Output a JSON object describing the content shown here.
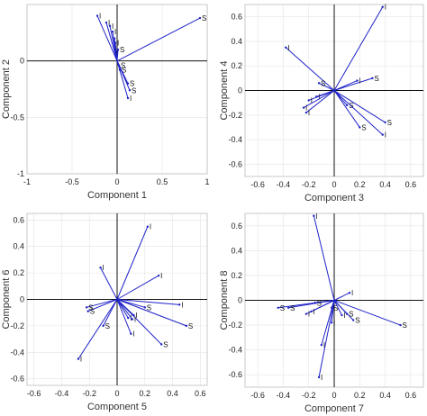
{
  "chart_data": [
    {
      "type": "biplot",
      "xlabel": "Component 1",
      "ylabel": "Component 2",
      "xlim": [
        -1,
        1
      ],
      "ylim": [
        -1,
        0.5
      ],
      "xticks": [
        "-1",
        "-0.5",
        "0",
        "0.5",
        "1"
      ],
      "yticks": [
        "-1",
        "-0.5",
        "0"
      ],
      "grid": true,
      "vectors": [
        {
          "label": "S",
          "x": 0.92,
          "y": 0.38
        },
        {
          "label": "I",
          "x": -0.22,
          "y": 0.4
        },
        {
          "label": "I",
          "x": -0.12,
          "y": 0.34
        },
        {
          "label": "I",
          "x": -0.08,
          "y": 0.31
        },
        {
          "label": "I",
          "x": -0.05,
          "y": 0.26
        },
        {
          "label": "I",
          "x": -0.03,
          "y": 0.2
        },
        {
          "label": "I",
          "x": -0.02,
          "y": 0.16
        },
        {
          "label": "S",
          "x": 0.01,
          "y": 0.1
        },
        {
          "label": "S",
          "x": 0.02,
          "y": -0.04
        },
        {
          "label": "S",
          "x": 0.03,
          "y": -0.08
        },
        {
          "label": "S",
          "x": 0.12,
          "y": -0.2
        },
        {
          "label": "S",
          "x": 0.14,
          "y": -0.26
        },
        {
          "label": "I",
          "x": 0.12,
          "y": -0.33
        }
      ]
    },
    {
      "type": "biplot",
      "xlabel": "Component 3",
      "ylabel": "Component 4",
      "xlim": [
        -0.7,
        0.7
      ],
      "ylim": [
        -0.7,
        0.7
      ],
      "xticks": [
        "-0.6",
        "-0.4",
        "-0.2",
        "0",
        "0.2",
        "0.4",
        "0.6"
      ],
      "yticks": [
        "-0.6",
        "-0.4",
        "-0.2",
        "0",
        "0.2",
        "0.4",
        "0.6"
      ],
      "grid": true,
      "vectors": [
        {
          "label": "I",
          "x": 0.38,
          "y": 0.68
        },
        {
          "label": "I",
          "x": -0.38,
          "y": 0.35
        },
        {
          "label": "S",
          "x": 0.3,
          "y": 0.1
        },
        {
          "label": "I",
          "x": 0.18,
          "y": 0.08
        },
        {
          "label": "S",
          "x": -0.12,
          "y": 0.06
        },
        {
          "label": "I",
          "x": -0.14,
          "y": -0.05
        },
        {
          "label": "I",
          "x": -0.2,
          "y": -0.08
        },
        {
          "label": "I",
          "x": -0.24,
          "y": -0.14
        },
        {
          "label": "I",
          "x": -0.22,
          "y": -0.18
        },
        {
          "label": "S",
          "x": 0.1,
          "y": -0.12
        },
        {
          "label": "S",
          "x": 0.2,
          "y": -0.3
        },
        {
          "label": "S",
          "x": 0.4,
          "y": -0.26
        },
        {
          "label": "I",
          "x": 0.38,
          "y": -0.36
        }
      ]
    },
    {
      "type": "biplot",
      "xlabel": "Component 5",
      "ylabel": "Component 6",
      "xlim": [
        -0.65,
        0.65
      ],
      "ylim": [
        -0.65,
        0.65
      ],
      "xticks": [
        "-0.6",
        "-0.4",
        "-0.2",
        "0",
        "0.2",
        "0.4",
        "0.6"
      ],
      "yticks": [
        "-0.6",
        "-0.4",
        "-0.2",
        "0",
        "0.2",
        "0.4",
        "0.6"
      ],
      "grid": true,
      "vectors": [
        {
          "label": "I",
          "x": 0.22,
          "y": 0.55
        },
        {
          "label": "I",
          "x": -0.12,
          "y": 0.24
        },
        {
          "label": "I",
          "x": 0.3,
          "y": 0.18
        },
        {
          "label": "I",
          "x": 0.45,
          "y": -0.04
        },
        {
          "label": "S",
          "x": -0.22,
          "y": -0.06
        },
        {
          "label": "S",
          "x": -0.21,
          "y": -0.09
        },
        {
          "label": "S",
          "x": 0.2,
          "y": -0.06
        },
        {
          "label": "S",
          "x": 0.5,
          "y": -0.2
        },
        {
          "label": "S",
          "x": 0.32,
          "y": -0.34
        },
        {
          "label": "I",
          "x": 0.12,
          "y": -0.12
        },
        {
          "label": "I",
          "x": 0.08,
          "y": -0.14
        },
        {
          "label": "I",
          "x": 0.11,
          "y": -0.15
        },
        {
          "label": "I",
          "x": 0.1,
          "y": -0.26
        },
        {
          "label": "S",
          "x": -0.1,
          "y": -0.2
        },
        {
          "label": "I",
          "x": -0.28,
          "y": -0.45
        }
      ]
    },
    {
      "type": "biplot",
      "xlabel": "Component 7",
      "ylabel": "Component 8",
      "xlim": [
        -0.7,
        0.7
      ],
      "ylim": [
        -0.7,
        0.7
      ],
      "xticks": [
        "-0.6",
        "-0.4",
        "-0.2",
        "0",
        "0.2",
        "0.4",
        "0.6"
      ],
      "yticks": [
        "-0.6",
        "-0.4",
        "-0.2",
        "0",
        "0.2",
        "0.4",
        "0.6"
      ],
      "grid": true,
      "vectors": [
        {
          "label": "I",
          "x": -0.16,
          "y": 0.68
        },
        {
          "label": "I",
          "x": 0.12,
          "y": 0.06
        },
        {
          "label": "S",
          "x": -0.44,
          "y": -0.06
        },
        {
          "label": "S",
          "x": -0.36,
          "y": -0.06
        },
        {
          "label": "S",
          "x": -0.15,
          "y": -0.02
        },
        {
          "label": "I",
          "x": -0.22,
          "y": -0.11
        },
        {
          "label": "I",
          "x": -0.18,
          "y": -0.09
        },
        {
          "label": "S",
          "x": -0.02,
          "y": -0.06
        },
        {
          "label": "S",
          "x": 0.52,
          "y": -0.2
        },
        {
          "label": "S",
          "x": 0.15,
          "y": -0.16
        },
        {
          "label": "S",
          "x": 0.1,
          "y": -0.11
        },
        {
          "label": "I",
          "x": 0.06,
          "y": -0.12
        },
        {
          "label": "I",
          "x": -0.02,
          "y": -0.18
        },
        {
          "label": "I",
          "x": -0.1,
          "y": -0.36
        },
        {
          "label": "I",
          "x": -0.12,
          "y": -0.62
        }
      ]
    }
  ]
}
